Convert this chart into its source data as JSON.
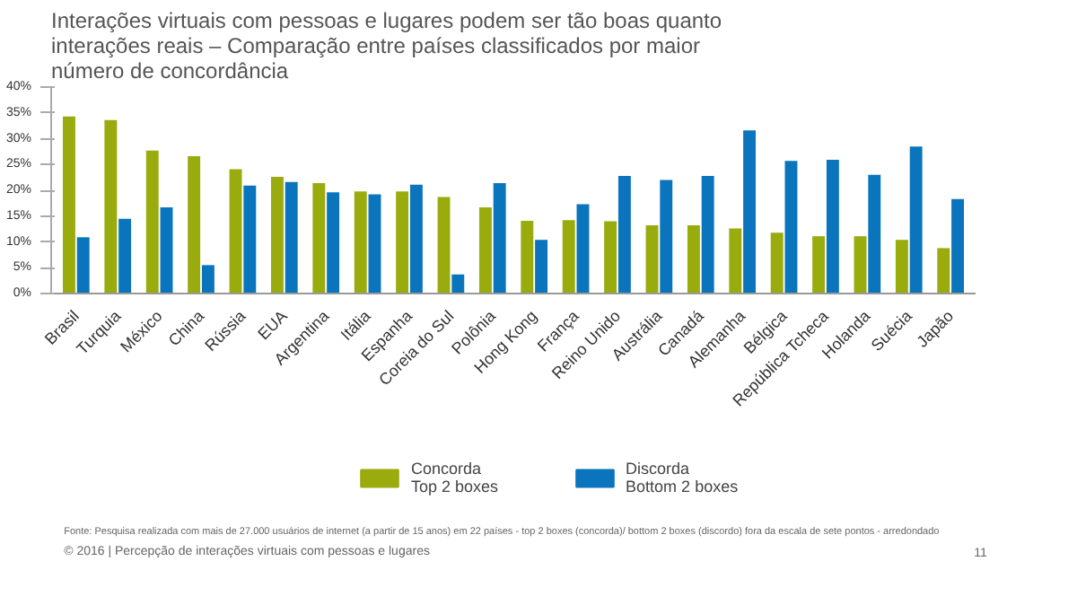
{
  "chart_data": {
    "type": "bar",
    "title": "Interações virtuais com pessoas e lugares podem ser tão boas quanto interações reais – Comparação entre países classificados por maior número de concordância",
    "categories": [
      "Brasil",
      "Turquia",
      "México",
      "China",
      "Rússia",
      "EUA",
      "Argentina",
      "Itália",
      "Espanha",
      "Coreia do Sul",
      "Polônia",
      "Hong Kong",
      "França",
      "Reino Unido",
      "Austrália",
      "Canadá",
      "Alemanha",
      "Bélgica",
      "República Tcheca",
      "Holanda",
      "Suécia",
      "Japão"
    ],
    "series": [
      {
        "name": "Concorda\nTop 2 boxes",
        "color": "#9aab0e",
        "values": [
          34.3,
          33.6,
          27.7,
          26.6,
          24.1,
          22.6,
          21.4,
          19.8,
          19.8,
          18.7,
          16.7,
          14.1,
          14.2,
          14.0,
          13.2,
          13.2,
          12.6,
          11.8,
          11.1,
          11.1,
          10.4,
          8.8
        ]
      },
      {
        "name": "Discorda\nBottom 2 boxes",
        "color": "#0a75bd",
        "values": [
          10.9,
          14.5,
          16.7,
          5.5,
          20.9,
          21.6,
          19.6,
          19.2,
          21.1,
          3.7,
          21.4,
          10.4,
          17.3,
          22.8,
          22.0,
          22.8,
          31.6,
          25.7,
          25.9,
          23.0,
          28.5,
          18.3
        ]
      }
    ],
    "ylim": [
      0,
      40
    ],
    "yticks": [
      {
        "value": 0,
        "label": "0%"
      },
      {
        "value": 5,
        "label": "5%"
      },
      {
        "value": 10,
        "label": "10%"
      },
      {
        "value": 15,
        "label": "15%"
      },
      {
        "value": 20,
        "label": "20%"
      },
      {
        "value": 25,
        "label": "25%"
      },
      {
        "value": 30,
        "label": "30%"
      },
      {
        "value": 35,
        "label": "35%"
      },
      {
        "value": 40,
        "label": "40%"
      }
    ],
    "grid": false,
    "legend": "bottom",
    "annotations": [
      "Fonte: Pesquisa realizada com mais de 27.000 usuários de internet (a partir de 15 anos) em 22 países - top 2 boxes (concorda)/ bottom 2 boxes (discordo) fora da escala de sete pontos - arredondado",
      "© 2016 | Percepção de interações virtuais com pessoas e lugares",
      "11"
    ]
  }
}
